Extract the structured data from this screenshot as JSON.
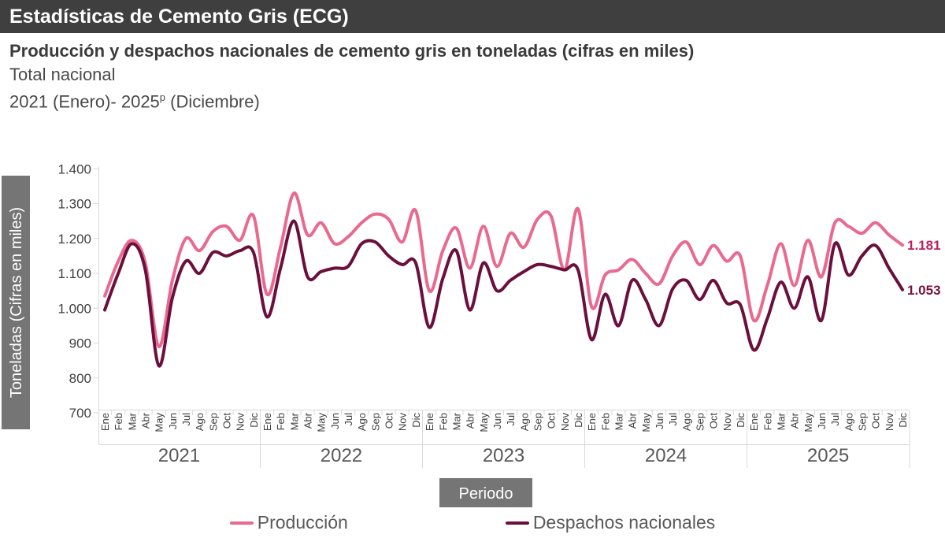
{
  "header": {
    "title": "Estadísticas de Cemento Gris (ECG)"
  },
  "titles": {
    "main": "Producción y despachos nacionales de cemento gris en toneladas (cifras en miles)",
    "subtitle": "Total nacional",
    "period_before": "2021 (Enero)- 2025",
    "period_superscript": "p",
    "period_after": " (Diciembre)"
  },
  "colors": {
    "header_background": "#3f3f3f",
    "axis_label_box": "#757575",
    "axis_line": "#d9d9d9",
    "tick_text": "#404040",
    "year_text": "#595959",
    "legend_text": "#595959",
    "produccion_line": "#e9698f",
    "despachos_line": "#6b0f3d",
    "produccion_end_label": "#c01e5f",
    "despachos_end_label": "#7a1040"
  },
  "chart_data": {
    "type": "line",
    "title": "Producción y despachos nacionales de cemento gris en toneladas (cifras en miles)",
    "x_axis_label": "Periodo",
    "y_axis_label": "Toneladas (Cifras en miles)",
    "ylim": [
      700,
      1400
    ],
    "grid": false,
    "legend_position": "bottom",
    "y_ticks": [
      {
        "label": "1.400",
        "value": 1400
      },
      {
        "label": "1.300",
        "value": 1300
      },
      {
        "label": "1.200",
        "value": 1200
      },
      {
        "label": "1.100",
        "value": 1100
      },
      {
        "label": "1.000",
        "value": 1000
      },
      {
        "label": "900",
        "value": 900
      },
      {
        "label": "800",
        "value": 800
      },
      {
        "label": "700",
        "value": 700
      }
    ],
    "years": [
      "2021",
      "2022",
      "2023",
      "2024",
      "2025"
    ],
    "months": [
      "Ene",
      "Feb",
      "Mar",
      "Abr",
      "May",
      "Jun",
      "Jul",
      "Ago",
      "Sep",
      "Oct",
      "Nov",
      "Dic"
    ],
    "series": [
      {
        "name": "Producción",
        "color": "#e9698f",
        "end_label": "1.181",
        "end_label_color": "#c01e5f",
        "values": [
          1035,
          1135,
          1195,
          1130,
          890,
          1080,
          1200,
          1165,
          1220,
          1235,
          1195,
          1265,
          1040,
          1175,
          1330,
          1210,
          1245,
          1185,
          1205,
          1245,
          1270,
          1255,
          1190,
          1280,
          1050,
          1165,
          1230,
          1115,
          1235,
          1120,
          1215,
          1175,
          1255,
          1265,
          1110,
          1285,
          1005,
          1095,
          1110,
          1140,
          1100,
          1070,
          1150,
          1190,
          1125,
          1180,
          1135,
          1150,
          965,
          1065,
          1185,
          1065,
          1195,
          1090,
          1245,
          1235,
          1215,
          1245,
          1210,
          1181
        ]
      },
      {
        "name": "Despachos nacionales",
        "color": "#6b0f3d",
        "end_label": "1.053",
        "end_label_color": "#7a1040",
        "values": [
          995,
          1100,
          1185,
          1110,
          835,
          1030,
          1135,
          1100,
          1160,
          1150,
          1165,
          1160,
          975,
          1115,
          1250,
          1090,
          1105,
          1115,
          1120,
          1185,
          1190,
          1150,
          1125,
          1130,
          945,
          1085,
          1165,
          995,
          1130,
          1050,
          1080,
          1105,
          1125,
          1120,
          1110,
          1110,
          910,
          1040,
          950,
          1080,
          1025,
          950,
          1055,
          1080,
          1025,
          1080,
          1015,
          1010,
          880,
          970,
          1075,
          1000,
          1090,
          965,
          1185,
          1095,
          1150,
          1180,
          1115,
          1053
        ]
      }
    ]
  }
}
